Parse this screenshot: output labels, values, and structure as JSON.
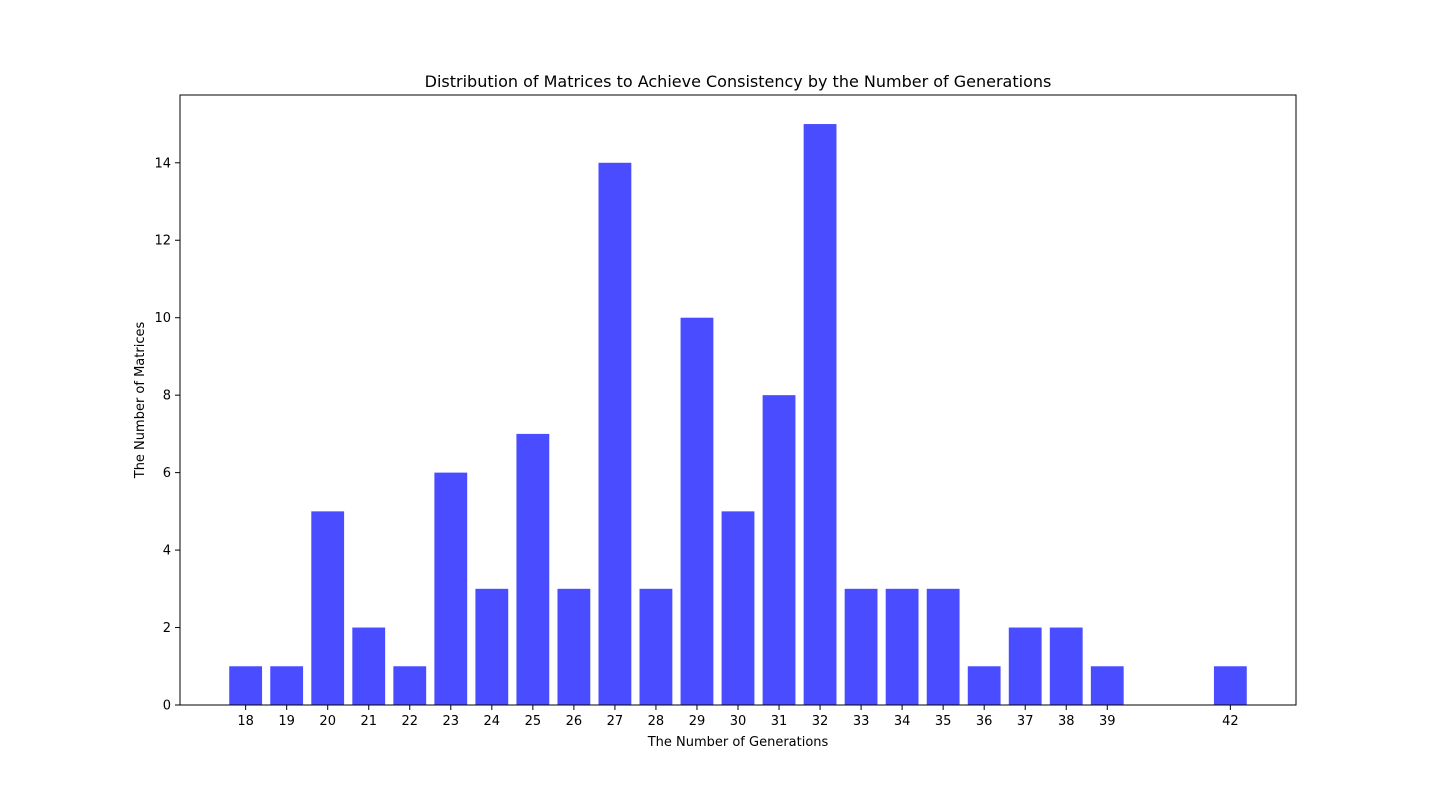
{
  "chart_data": {
    "type": "bar",
    "title": "Distribution of Matrices to Achieve Consistency by the Number of Generations",
    "xlabel": "The Number of Generations",
    "ylabel": "The Number of Matrices",
    "x": [
      18,
      19,
      20,
      21,
      22,
      23,
      24,
      25,
      26,
      27,
      28,
      29,
      30,
      31,
      32,
      33,
      34,
      35,
      36,
      37,
      38,
      39,
      42
    ],
    "values": [
      1,
      1,
      5,
      2,
      1,
      6,
      3,
      7,
      3,
      14,
      3,
      10,
      5,
      8,
      15,
      3,
      3,
      3,
      1,
      2,
      2,
      1,
      1
    ],
    "xlim": [
      16.4,
      43.6
    ],
    "ylim": [
      0,
      15.75
    ],
    "yticks": [
      0,
      2,
      4,
      6,
      8,
      10,
      12,
      14
    ],
    "bar_color": "#4a4dff",
    "bar_width": 0.8,
    "grid": false,
    "legend": "none"
  }
}
